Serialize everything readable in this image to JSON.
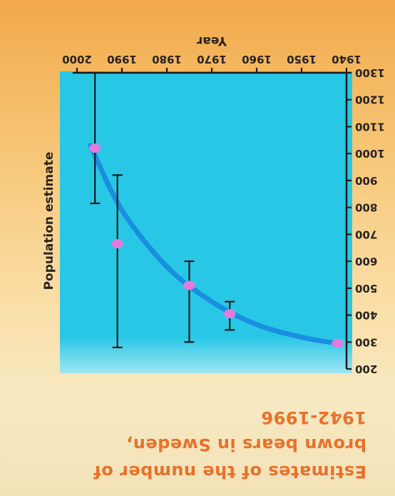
{
  "slide": {
    "title_lines": [
      "Estimates of the number of",
      "brown bears in Sweden,",
      "1942-1996"
    ]
  },
  "chart_data": {
    "type": "scatter",
    "title": "Estimates of the number of brown bears in Sweden, 1942-1996",
    "xlabel": "Year",
    "ylabel": "Population estimate",
    "xlim": [
      1940,
      2000
    ],
    "ylim": [
      200,
      1300
    ],
    "x_ticks": [
      "1940",
      "1950",
      "1960",
      "1970",
      "1980",
      "1990",
      "2000"
    ],
    "y_ticks": [
      "200",
      "300",
      "400",
      "500",
      "600",
      "700",
      "800",
      "900",
      "1000",
      "1100",
      "1200",
      "1300"
    ],
    "x_tick_values": [
      1940,
      1950,
      1960,
      1970,
      1980,
      1990,
      2000
    ],
    "y_tick_values": [
      200,
      300,
      400,
      500,
      600,
      700,
      800,
      900,
      1000,
      1100,
      1200,
      1300
    ],
    "series": [
      {
        "type": "points_with_error_bars",
        "x": [
          1942,
          1966,
          1975,
          1991,
          1996
        ],
        "y": [
          295,
          405,
          510,
          665,
          1020
        ],
        "err_low": [
          null,
          345,
          300,
          280,
          815
        ],
        "err_high": [
          null,
          450,
          600,
          920,
          1300
        ]
      },
      {
        "type": "fitted_curve",
        "x": [
          1942,
          1950,
          1960,
          1970,
          1980,
          1990,
          1997
        ],
        "y": [
          295,
          318,
          365,
          450,
          580,
          790,
          1030
        ]
      }
    ],
    "plot_background": "#29c7e6",
    "point_color": "#e37ae0",
    "curve_color": "#1a8fe0",
    "grid": false
  }
}
